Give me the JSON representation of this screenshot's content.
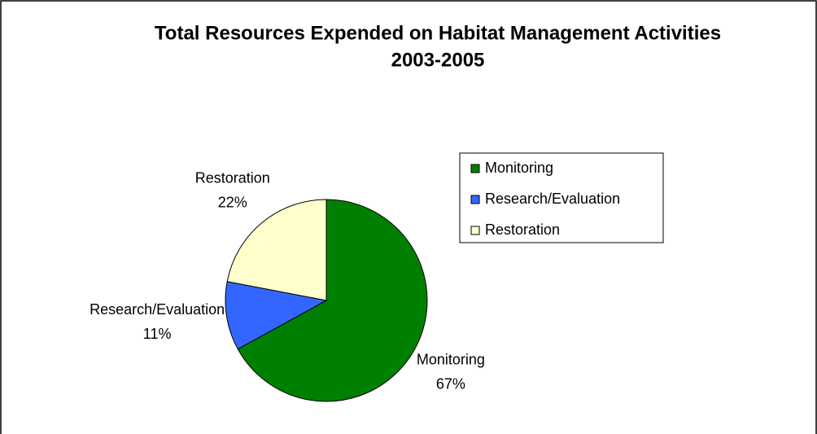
{
  "chart_data": {
    "type": "pie",
    "title": [
      "Total Resources Expended on Habitat Management Activities",
      "2003-2005"
    ],
    "categories": [
      "Monitoring",
      "Research/Evaluation",
      "Restoration"
    ],
    "values": [
      67,
      11,
      22
    ],
    "value_labels": [
      "67%",
      "11%",
      "22%"
    ],
    "colors": [
      "#008000",
      "#3366ff",
      "#ffffcc"
    ],
    "legend": "right"
  }
}
